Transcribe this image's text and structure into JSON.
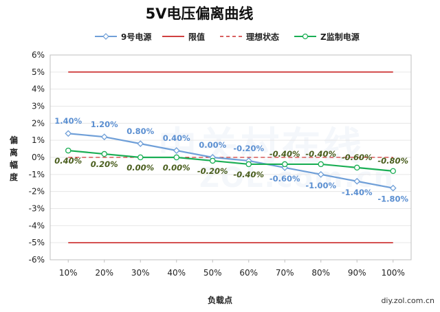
{
  "watermark": {
    "main": "中关村在线",
    "sub": "ZOL.com.cn"
  },
  "credit": "diy.zol.com.cn",
  "chart_data": {
    "type": "line",
    "title": "5V电压偏离曲线",
    "xlabel": "负载点",
    "ylabel": "偏离幅度",
    "categories": [
      "10%",
      "20%",
      "30%",
      "40%",
      "50%",
      "60%",
      "70%",
      "80%",
      "90%",
      "100%"
    ],
    "ylim": [
      -6,
      6
    ],
    "yticks": [
      "-6%",
      "-5%",
      "-4%",
      "-3%",
      "-2%",
      "-1%",
      "0%",
      "1%",
      "2%",
      "3%",
      "4%",
      "5%",
      "6%"
    ],
    "grid": true,
    "legend_position": "top",
    "series": [
      {
        "name": "9号电源",
        "color": "#6f9fd8",
        "marker": "diamond",
        "values": [
          1.4,
          1.2,
          0.8,
          0.4,
          0.0,
          -0.2,
          -0.6,
          -1.0,
          -1.4,
          -1.8
        ],
        "labels": [
          "1.40%",
          "1.20%",
          "0.80%",
          "0.40%",
          "0.00%",
          "-0.20%",
          "-0.60%",
          "-1.00%",
          "-1.40%",
          "-1.80%"
        ],
        "label_color": "#5b8fd1"
      },
      {
        "name": "限值",
        "color": "#c00000",
        "style": "solid",
        "values_upper": 5,
        "values_lower": -5
      },
      {
        "name": "理想状态",
        "color": "#c00000",
        "style": "dashed",
        "value": 0
      },
      {
        "name": "Z监制电源",
        "color": "#1aae54",
        "marker": "circle",
        "values": [
          0.4,
          0.2,
          0.0,
          0.0,
          -0.2,
          -0.4,
          -0.4,
          -0.4,
          -0.6,
          -0.8
        ],
        "labels": [
          "0.40%",
          "0.20%",
          "0.00%",
          "0.00%",
          "-0.20%",
          "-0.40%",
          "-0.40%",
          "-0.40%",
          "-0.60%",
          "-0.80%"
        ],
        "label_color": "#4a5e1e"
      }
    ]
  }
}
